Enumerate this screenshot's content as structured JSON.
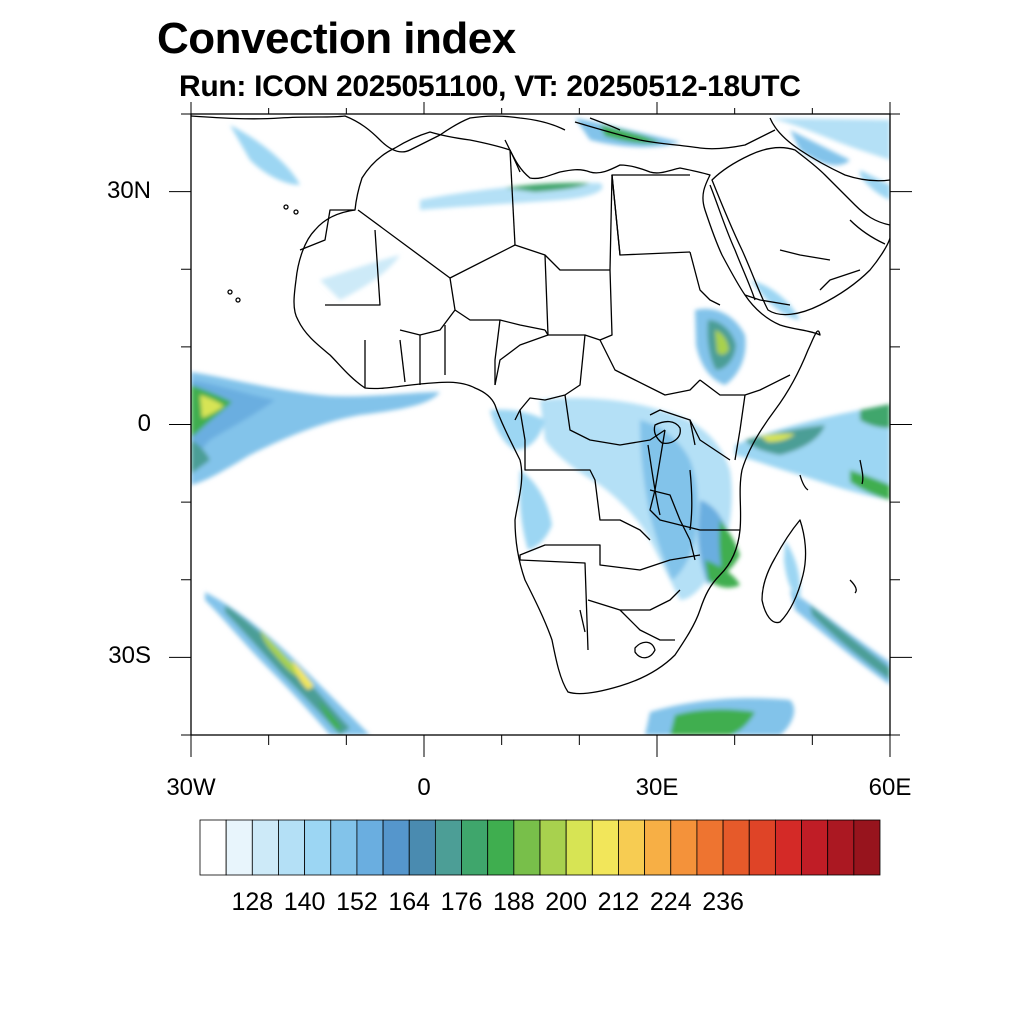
{
  "title": "Convection index",
  "subtitle": "Run: ICON 2025051100,  VT: 20250512-18UTC",
  "axes": {
    "lat_labels": [
      {
        "text": "30N",
        "lat": 30
      },
      {
        "text": "0",
        "lat": 0
      },
      {
        "text": "30S",
        "lat": -30
      }
    ],
    "lon_labels": [
      {
        "text": "30W",
        "lon": -30
      },
      {
        "text": "0",
        "lon": 0
      },
      {
        "text": "30E",
        "lon": 30
      },
      {
        "text": "60E",
        "lon": 60
      }
    ],
    "lon_range": [
      -30,
      60
    ],
    "lat_range": [
      -40,
      40
    ]
  },
  "colorbar": {
    "colors": [
      "#ffffff",
      "#e8f5fc",
      "#cdeaf8",
      "#b4e0f6",
      "#9cd6f3",
      "#82c3ea",
      "#6aaee0",
      "#5596cc",
      "#4a8bb0",
      "#4c9e96",
      "#3fa66c",
      "#3fae4f",
      "#78bf4a",
      "#a8d14e",
      "#d7e454",
      "#f2e65a",
      "#f7cc52",
      "#f7af45",
      "#f4923a",
      "#ee7430",
      "#e65a2a",
      "#df4427",
      "#d42a27",
      "#c01d26",
      "#ab1822",
      "#97141d"
    ],
    "tick_labels": [
      "128",
      "140",
      "152",
      "164",
      "176",
      "188",
      "200",
      "212",
      "224",
      "236"
    ],
    "tick_positions": [
      2,
      4,
      6,
      8,
      10,
      12,
      14,
      16,
      18,
      20
    ]
  }
}
